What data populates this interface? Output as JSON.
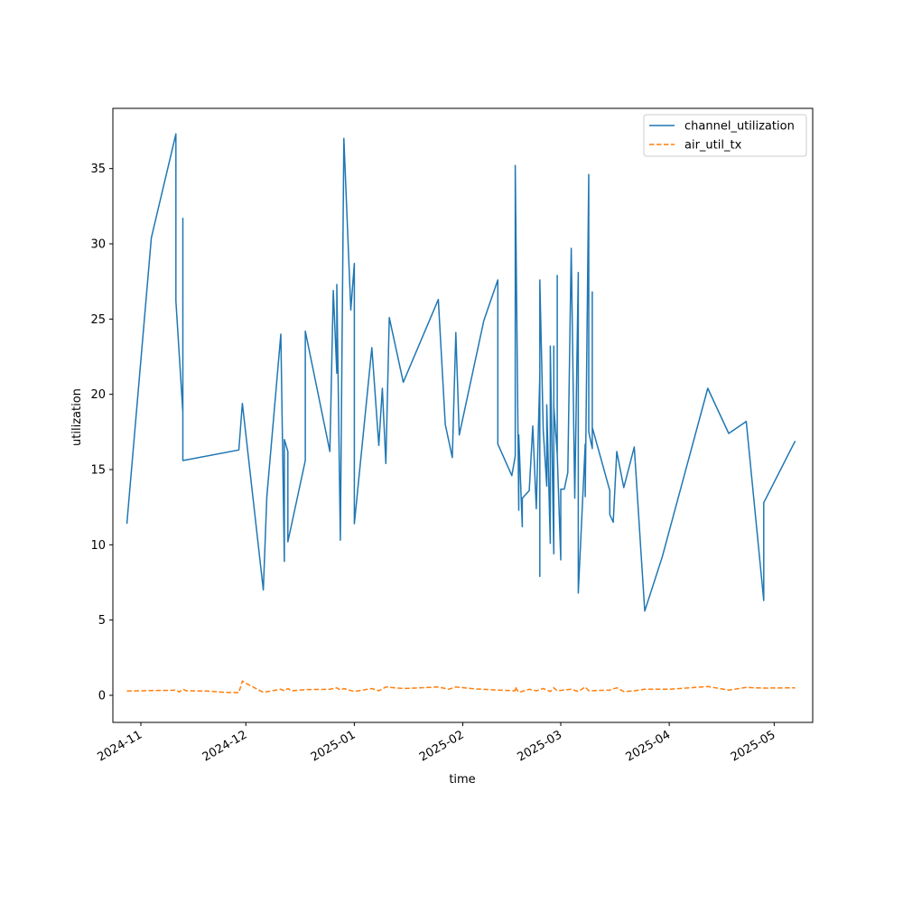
{
  "chart_data": {
    "type": "line",
    "title": "",
    "xlabel": "time",
    "ylabel": "utilization",
    "x_axis_type": "date",
    "xlim": [
      "2024-10-24",
      "2025-05-12"
    ],
    "ylim": [
      -1.8,
      39.0
    ],
    "x_ticks": [
      "2024-11-01",
      "2024-12-01",
      "2025-01-01",
      "2025-02-01",
      "2025-03-01",
      "2025-04-01",
      "2025-05-01"
    ],
    "x_tick_labels": [
      "2024-11",
      "2024-12",
      "2025-01",
      "2025-02",
      "2025-03",
      "2025-04",
      "2025-05"
    ],
    "y_ticks": [
      0,
      5,
      10,
      15,
      20,
      25,
      30,
      35
    ],
    "y_tick_labels": [
      "0",
      "5",
      "10",
      "15",
      "20",
      "25",
      "30",
      "35"
    ],
    "grid": false,
    "legend_position": "upper right",
    "series": [
      {
        "name": "channel_utilization",
        "color": "#1f77b4",
        "line_style": "solid",
        "points": [
          [
            "2024-10-28",
            11.4
          ],
          [
            "2024-11-04",
            30.4
          ],
          [
            "2024-11-11",
            37.3
          ],
          [
            "2024-11-11",
            26.2
          ],
          [
            "2024-11-13",
            18.8
          ],
          [
            "2024-11-13",
            31.7
          ],
          [
            "2024-11-13",
            15.6
          ],
          [
            "2024-11-29",
            16.3
          ],
          [
            "2024-11-30",
            19.4
          ],
          [
            "2024-12-06",
            7.0
          ],
          [
            "2024-12-07",
            13.2
          ],
          [
            "2024-12-11",
            24.0
          ],
          [
            "2024-12-12",
            8.9
          ],
          [
            "2024-12-12",
            17.0
          ],
          [
            "2024-12-13",
            16.2
          ],
          [
            "2024-12-13",
            10.2
          ],
          [
            "2024-12-18",
            15.6
          ],
          [
            "2024-12-18",
            24.2
          ],
          [
            "2024-12-25",
            16.2
          ],
          [
            "2024-12-26",
            26.9
          ],
          [
            "2024-12-27",
            21.4
          ],
          [
            "2024-12-27",
            27.3
          ],
          [
            "2024-12-28",
            10.3
          ],
          [
            "2024-12-29",
            37.0
          ],
          [
            "2024-12-31",
            25.6
          ],
          [
            "2025-01-01",
            28.7
          ],
          [
            "2025-01-01",
            11.4
          ],
          [
            "2025-01-06",
            23.1
          ],
          [
            "2025-01-08",
            16.6
          ],
          [
            "2025-01-09",
            20.4
          ],
          [
            "2025-01-10",
            15.4
          ],
          [
            "2025-01-11",
            25.1
          ],
          [
            "2025-01-15",
            20.8
          ],
          [
            "2025-01-25",
            26.3
          ],
          [
            "2025-01-27",
            18.0
          ],
          [
            "2025-01-29",
            15.8
          ],
          [
            "2025-01-30",
            24.1
          ],
          [
            "2025-01-31",
            17.3
          ],
          [
            "2025-02-07",
            24.9
          ],
          [
            "2025-02-11",
            27.6
          ],
          [
            "2025-02-11",
            16.7
          ],
          [
            "2025-02-15",
            14.6
          ],
          [
            "2025-02-16",
            15.9
          ],
          [
            "2025-02-16",
            35.2
          ],
          [
            "2025-02-17",
            12.3
          ],
          [
            "2025-02-17",
            17.3
          ],
          [
            "2025-02-18",
            11.2
          ],
          [
            "2025-02-18",
            13.1
          ],
          [
            "2025-02-20",
            13.6
          ],
          [
            "2025-02-21",
            17.9
          ],
          [
            "2025-02-22",
            12.4
          ],
          [
            "2025-02-23",
            21.3
          ],
          [
            "2025-02-23",
            7.9
          ],
          [
            "2025-02-23",
            27.6
          ],
          [
            "2025-02-24",
            17.6
          ],
          [
            "2025-02-25",
            13.9
          ],
          [
            "2025-02-25",
            19.3
          ],
          [
            "2025-02-26",
            10.1
          ],
          [
            "2025-02-26",
            23.2
          ],
          [
            "2025-02-27",
            9.4
          ],
          [
            "2025-02-27",
            23.2
          ],
          [
            "2025-02-27",
            19.2
          ],
          [
            "2025-02-28",
            16.0
          ],
          [
            "2025-02-28",
            27.9
          ],
          [
            "2025-02-28",
            16.0
          ],
          [
            "2025-03-01",
            9.0
          ],
          [
            "2025-03-01",
            13.7
          ],
          [
            "2025-03-02",
            13.7
          ],
          [
            "2025-03-03",
            14.8
          ],
          [
            "2025-03-04",
            29.7
          ],
          [
            "2025-03-05",
            13.1
          ],
          [
            "2025-03-06",
            28.1
          ],
          [
            "2025-03-06",
            6.8
          ],
          [
            "2025-03-08",
            16.7
          ],
          [
            "2025-03-08",
            13.2
          ],
          [
            "2025-03-09",
            34.6
          ],
          [
            "2025-03-09",
            17.5
          ],
          [
            "2025-03-10",
            16.4
          ],
          [
            "2025-03-10",
            26.8
          ],
          [
            "2025-03-10",
            17.8
          ],
          [
            "2025-03-15",
            13.6
          ],
          [
            "2025-03-15",
            12.0
          ],
          [
            "2025-03-16",
            11.5
          ],
          [
            "2025-03-17",
            16.2
          ],
          [
            "2025-03-19",
            13.8
          ],
          [
            "2025-03-22",
            16.5
          ],
          [
            "2025-03-25",
            5.6
          ],
          [
            "2025-03-30",
            9.2
          ],
          [
            "2025-04-12",
            20.4
          ],
          [
            "2025-04-18",
            17.4
          ],
          [
            "2025-04-23",
            18.2
          ],
          [
            "2025-04-28",
            6.3
          ],
          [
            "2025-04-28",
            12.8
          ],
          [
            "2025-05-07",
            16.9
          ]
        ]
      },
      {
        "name": "air_util_tx",
        "color": "#ff7f0e",
        "line_style": "dashed",
        "points": [
          [
            "2024-10-28",
            0.28
          ],
          [
            "2024-11-04",
            0.32
          ],
          [
            "2024-11-09",
            0.33
          ],
          [
            "2024-11-11",
            0.35
          ],
          [
            "2024-11-12",
            0.22
          ],
          [
            "2024-11-13",
            0.4
          ],
          [
            "2024-11-14",
            0.3
          ],
          [
            "2024-11-20",
            0.28
          ],
          [
            "2024-11-25",
            0.2
          ],
          [
            "2024-11-29",
            0.18
          ],
          [
            "2024-11-30",
            0.95
          ],
          [
            "2024-12-01",
            0.8
          ],
          [
            "2024-12-06",
            0.2
          ],
          [
            "2024-12-11",
            0.4
          ],
          [
            "2024-12-12",
            0.3
          ],
          [
            "2024-12-13",
            0.45
          ],
          [
            "2024-12-14",
            0.3
          ],
          [
            "2024-12-18",
            0.38
          ],
          [
            "2024-12-25",
            0.4
          ],
          [
            "2024-12-27",
            0.5
          ],
          [
            "2024-12-28",
            0.35
          ],
          [
            "2024-12-29",
            0.45
          ],
          [
            "2025-01-01",
            0.25
          ],
          [
            "2025-01-06",
            0.45
          ],
          [
            "2025-01-08",
            0.3
          ],
          [
            "2025-01-10",
            0.55
          ],
          [
            "2025-01-15",
            0.45
          ],
          [
            "2025-01-25",
            0.55
          ],
          [
            "2025-01-28",
            0.4
          ],
          [
            "2025-01-30",
            0.55
          ],
          [
            "2025-02-05",
            0.42
          ],
          [
            "2025-02-11",
            0.35
          ],
          [
            "2025-02-16",
            0.3
          ],
          [
            "2025-02-16",
            0.55
          ],
          [
            "2025-02-17",
            0.2
          ],
          [
            "2025-02-20",
            0.4
          ],
          [
            "2025-02-22",
            0.3
          ],
          [
            "2025-02-24",
            0.45
          ],
          [
            "2025-02-26",
            0.25
          ],
          [
            "2025-02-27",
            0.5
          ],
          [
            "2025-02-28",
            0.3
          ],
          [
            "2025-03-04",
            0.4
          ],
          [
            "2025-03-06",
            0.25
          ],
          [
            "2025-03-08",
            0.55
          ],
          [
            "2025-03-09",
            0.3
          ],
          [
            "2025-03-15",
            0.35
          ],
          [
            "2025-03-17",
            0.5
          ],
          [
            "2025-03-19",
            0.25
          ],
          [
            "2025-03-22",
            0.3
          ],
          [
            "2025-03-25",
            0.4
          ],
          [
            "2025-04-01",
            0.4
          ],
          [
            "2025-04-12",
            0.58
          ],
          [
            "2025-04-18",
            0.35
          ],
          [
            "2025-04-23",
            0.52
          ],
          [
            "2025-04-28",
            0.48
          ],
          [
            "2025-05-07",
            0.5
          ]
        ]
      }
    ]
  }
}
